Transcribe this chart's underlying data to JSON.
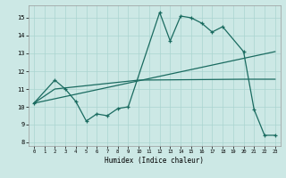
{
  "xlabel": "Humidex (Indice chaleur)",
  "bg_color": "#cce8e5",
  "grid_color": "#aad4d0",
  "line_color": "#1a6b60",
  "xlim": [
    -0.5,
    23.5
  ],
  "ylim": [
    7.8,
    15.7
  ],
  "xticks": [
    0,
    1,
    2,
    3,
    4,
    5,
    6,
    7,
    8,
    9,
    10,
    11,
    12,
    13,
    14,
    15,
    16,
    17,
    18,
    19,
    20,
    21,
    22,
    23
  ],
  "yticks": [
    8,
    9,
    10,
    11,
    12,
    13,
    14,
    15
  ],
  "line1_x": [
    0,
    2,
    3,
    4,
    5,
    6,
    7,
    8,
    9,
    12,
    13,
    14,
    15,
    16,
    17,
    18,
    20,
    21,
    22,
    23
  ],
  "line1_y": [
    10.2,
    11.5,
    11.0,
    10.3,
    9.2,
    9.6,
    9.5,
    9.9,
    10.0,
    15.3,
    13.7,
    15.1,
    15.0,
    14.7,
    14.2,
    14.5,
    13.1,
    9.85,
    8.4,
    8.4
  ],
  "line2_x": [
    0,
    23
  ],
  "line2_y": [
    10.2,
    13.1
  ],
  "line3_x": [
    0,
    2,
    10,
    20,
    21,
    22,
    23
  ],
  "line3_y": [
    10.2,
    11.0,
    11.5,
    11.55,
    11.55,
    11.55,
    11.55
  ]
}
